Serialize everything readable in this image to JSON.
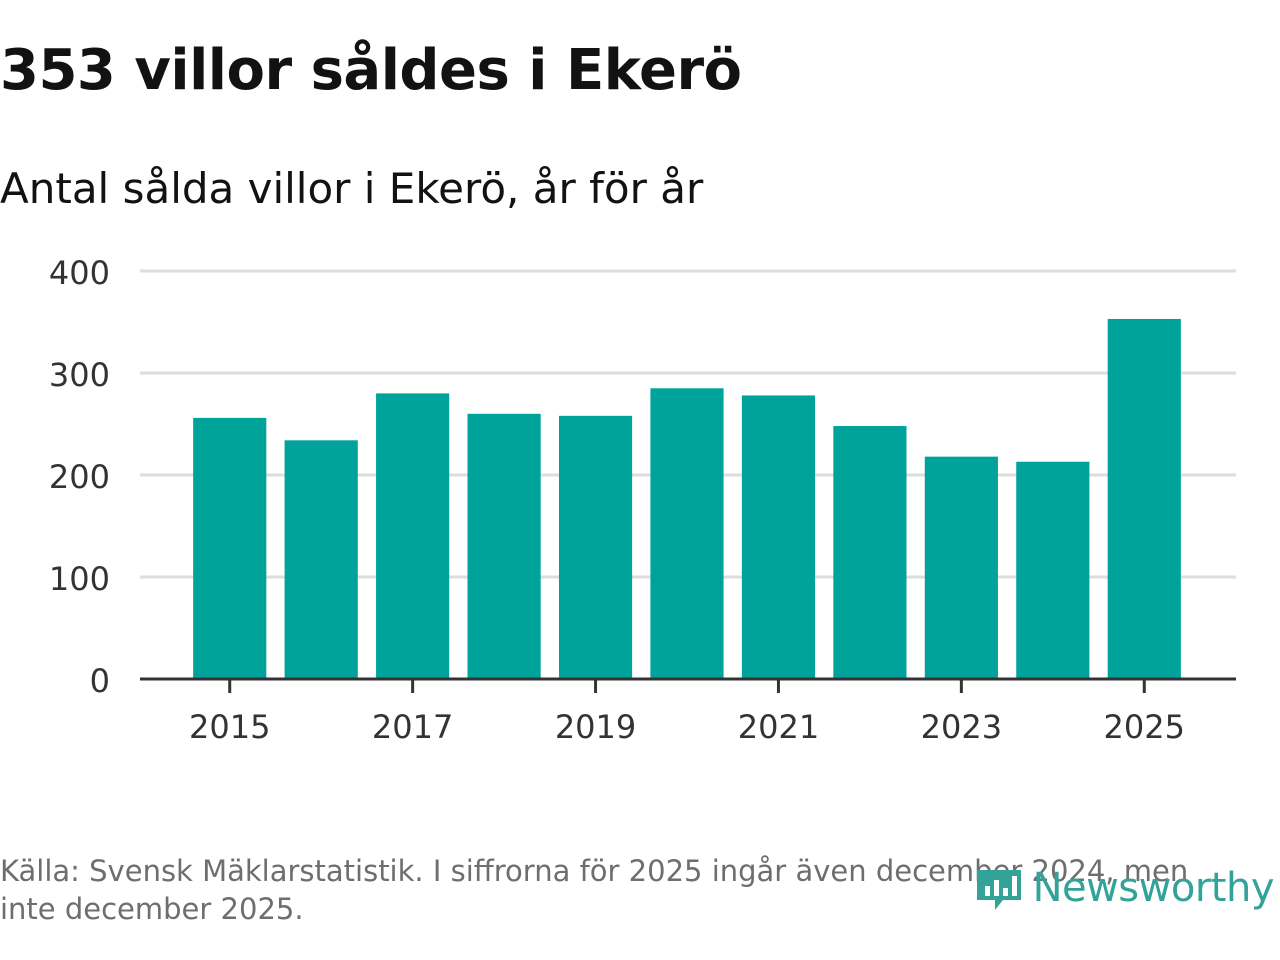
{
  "title": "353 villor såldes i Ekerö",
  "subtitle": "Antal sålda villor i Ekerö, år för år",
  "footer": {
    "note": "Källa: Svensk Mäklarstatistik. I siffrorna för 2025 ingår även december 2024, men inte december 2025."
  },
  "logo": {
    "text": "Newsworthy",
    "icon": "newsworthy-logo-icon"
  },
  "colors": {
    "bar": "#00a39a",
    "grid": "#dddddd",
    "axis": "#333333",
    "logo": "#33a39a",
    "note": "#6e6e6e"
  },
  "chart_data": {
    "type": "bar",
    "categories": [
      "2015",
      "2016",
      "2017",
      "2018",
      "2019",
      "2020",
      "2021",
      "2022",
      "2023",
      "2024",
      "2025"
    ],
    "values": [
      256,
      234,
      280,
      260,
      258,
      285,
      278,
      248,
      218,
      213,
      353
    ],
    "x_tick_labels": [
      "2015",
      "2017",
      "2019",
      "2021",
      "2023",
      "2025"
    ],
    "y_ticks": [
      0,
      100,
      200,
      300,
      400
    ],
    "ylim": [
      0,
      400
    ],
    "xlabel": "",
    "ylabel": "",
    "grid": true,
    "legend": "none"
  }
}
